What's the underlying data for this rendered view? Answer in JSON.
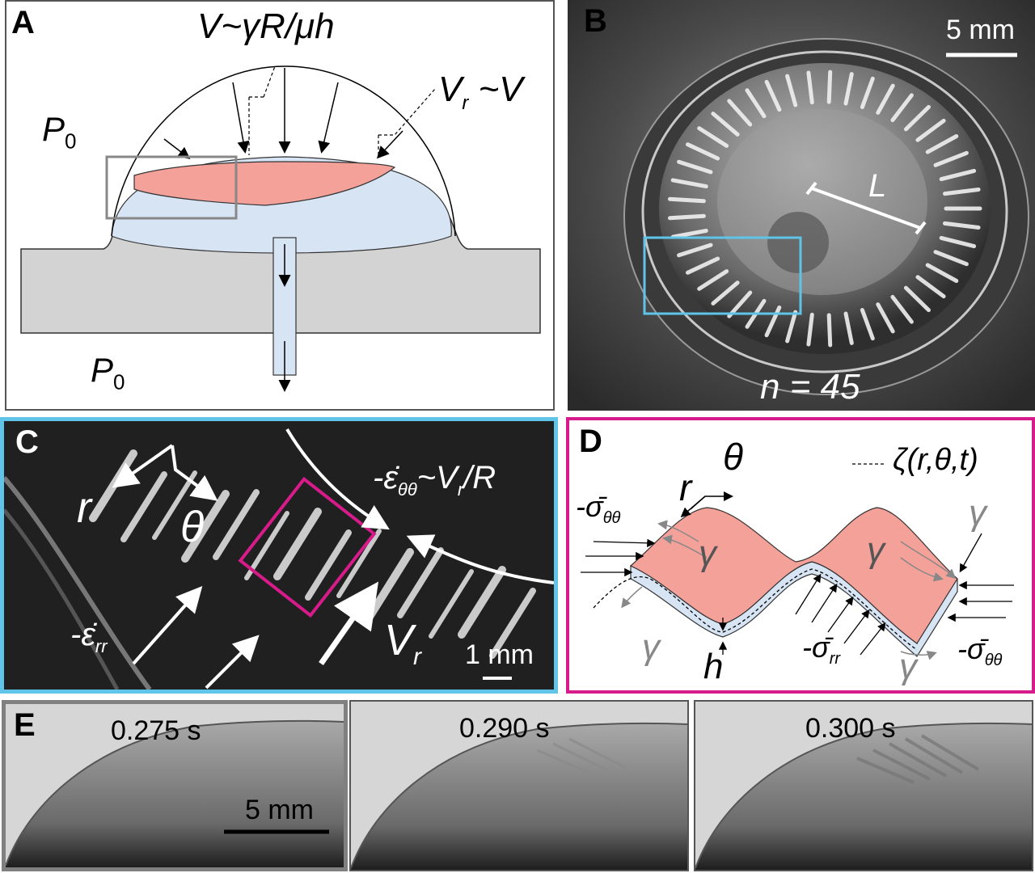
{
  "panel_a": {
    "label": "A",
    "eq_velocity": "V~γR/μh",
    "eq_radial": "V",
    "eq_radial_sub": "r",
    "eq_radial_rhs": " ~V",
    "pressure_top": "P",
    "pressure_top_sub": "0",
    "pressure_bottom": "P",
    "pressure_bottom_sub": "0"
  },
  "panel_b": {
    "label": "B",
    "scale_bar": "5 mm",
    "length_label": "L",
    "wrinkle_count": "n = 45"
  },
  "panel_c": {
    "label": "C",
    "r_label": "r",
    "theta_label": "θ",
    "strain_theta": "-ε̇",
    "strain_theta_sub": "θθ",
    "strain_theta_rhs": "~V",
    "strain_theta_rhs_sub": "r",
    "strain_theta_rhs_end": "/R",
    "strain_rr": "-ε̇",
    "strain_rr_sub": "rr",
    "vr_label": "V",
    "vr_sub": "r",
    "scale_bar": "1 mm"
  },
  "panel_d": {
    "label": "D",
    "theta_label": "θ",
    "r_label": "r",
    "zeta_label": "ζ(r,θ,t)",
    "sigma_tt_left": "-σ̄",
    "sigma_tt_left_sub": "θθ",
    "sigma_tt_right": "-σ̄",
    "sigma_tt_right_sub": "θθ",
    "sigma_rr": "-σ̄",
    "sigma_rr_sub": "rr",
    "gamma": "γ",
    "h_label": "h"
  },
  "panel_e": {
    "label": "E",
    "frames": [
      {
        "time": "0.275 s"
      },
      {
        "time": "0.290 s"
      },
      {
        "time": "0.300 s"
      }
    ],
    "scale_bar": "5 mm"
  },
  "colors": {
    "film_pink": "#f4a19a",
    "liquid_blue": "#d6e4f4",
    "substrate_gray": "#d3d3d3",
    "frame_cyan": "#5fc4e8",
    "frame_magenta": "#d81b8a",
    "frame_gray": "#808080"
  }
}
